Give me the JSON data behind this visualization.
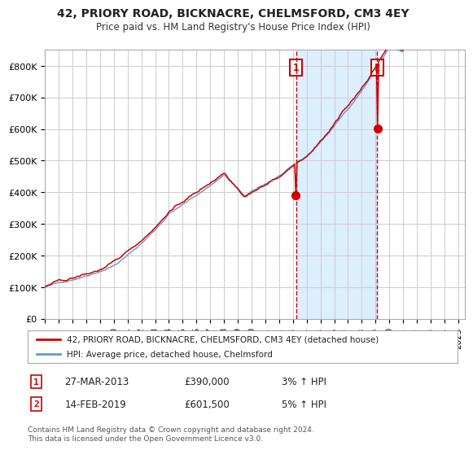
{
  "title": "42, PRIORY ROAD, BICKNACRE, CHELMSFORD, CM3 4EY",
  "subtitle": "Price paid vs. HM Land Registry's House Price Index (HPI)",
  "legend_line1": "42, PRIORY ROAD, BICKNACRE, CHELMSFORD, CM3 4EY (detached house)",
  "legend_line2": "HPI: Average price, detached house, Chelmsford",
  "transaction1_date": "27-MAR-2013",
  "transaction1_price": 390000,
  "transaction1_hpi": "3% ↑ HPI",
  "transaction1_year": 2013.23,
  "transaction2_date": "14-FEB-2019",
  "transaction2_price": 601500,
  "transaction2_hpi": "5% ↑ HPI",
  "transaction2_year": 2019.12,
  "red_color": "#cc0000",
  "blue_color": "#6699cc",
  "shade_color": "#ddeeff",
  "background_color": "#ffffff",
  "grid_color": "#cccccc",
  "ylim": [
    0,
    850000
  ],
  "xlim_start": 1995.0,
  "xlim_end": 2025.5,
  "yticks": [
    0,
    100000,
    200000,
    300000,
    400000,
    500000,
    600000,
    700000,
    800000
  ],
  "ytick_labels": [
    "£0",
    "£100K",
    "£200K",
    "£300K",
    "£400K",
    "£500K",
    "£600K",
    "£700K",
    "£800K"
  ],
  "xticks": [
    1995,
    1996,
    1997,
    1998,
    1999,
    2000,
    2001,
    2002,
    2003,
    2004,
    2005,
    2006,
    2007,
    2008,
    2009,
    2010,
    2011,
    2012,
    2013,
    2014,
    2015,
    2016,
    2017,
    2018,
    2019,
    2020,
    2021,
    2022,
    2023,
    2024,
    2025
  ],
  "footnote": "Contains HM Land Registry data © Crown copyright and database right 2024.\nThis data is licensed under the Open Government Licence v3.0.",
  "label1": "1",
  "label2": "2"
}
